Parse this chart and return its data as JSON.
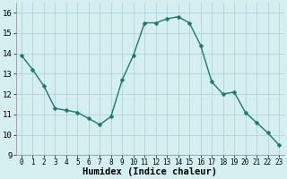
{
  "x": [
    0,
    1,
    2,
    3,
    4,
    5,
    6,
    7,
    8,
    9,
    10,
    11,
    12,
    13,
    14,
    15,
    16,
    17,
    18,
    19,
    20,
    21,
    22,
    23
  ],
  "y": [
    13.9,
    13.2,
    12.4,
    11.3,
    11.2,
    11.1,
    10.8,
    10.5,
    10.9,
    12.7,
    13.9,
    15.5,
    15.5,
    15.7,
    15.8,
    15.5,
    14.4,
    12.6,
    12.0,
    12.1,
    11.1,
    10.6,
    10.1,
    9.5
  ],
  "line_color": "#1a7a6e",
  "marker": "D",
  "marker_size": 2.5,
  "bg_color": "#d5eef0",
  "grid_color": "#aacdd4",
  "xlabel": "Humidex (Indice chaleur)",
  "ylim": [
    9,
    16.5
  ],
  "xlim": [
    -0.5,
    23.5
  ],
  "yticks": [
    9,
    10,
    11,
    12,
    13,
    14,
    15,
    16
  ],
  "xticks": [
    0,
    1,
    2,
    3,
    4,
    5,
    6,
    7,
    8,
    9,
    10,
    11,
    12,
    13,
    14,
    15,
    16,
    17,
    18,
    19,
    20,
    21,
    22,
    23
  ],
  "xlabel_fontsize": 7.5,
  "tick_fontsize": 5.5,
  "ytick_fontsize": 6.5,
  "linewidth": 1.0
}
